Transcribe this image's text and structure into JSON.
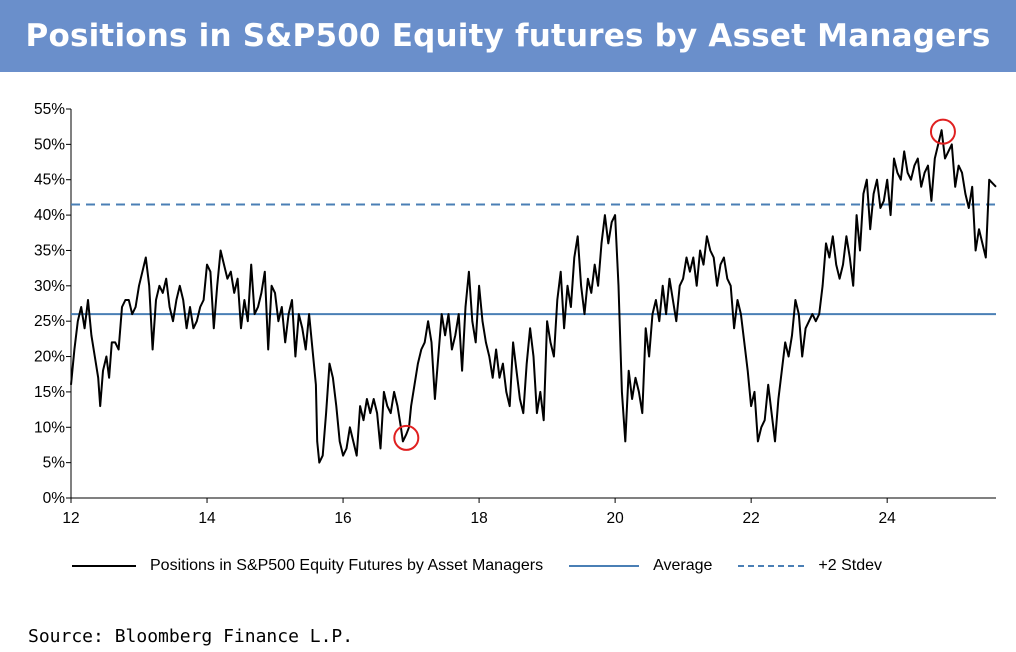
{
  "title": "Positions in S&P500 Equity futures by Asset Managers",
  "source": "Source: Bloomberg Finance L.P.",
  "colors": {
    "title_bg": "#6a8fcb",
    "series": "#000000",
    "reference": "#4a7fb5",
    "highlight": "#e02020"
  },
  "legend": {
    "series": "Positions in S&P500 Equity Futures by Asset Managers",
    "average": "Average",
    "stdev": "+2 Stdev"
  },
  "chart_data": {
    "type": "line",
    "title": "Positions in S&P500 Equity futures by Asset Managers",
    "xlabel": "",
    "ylabel": "",
    "xlim": [
      12,
      25.6
    ],
    "ylim": [
      0,
      55
    ],
    "x_ticks": [
      12,
      14,
      16,
      18,
      20,
      22,
      24
    ],
    "x_tick_labels": [
      "12",
      "14",
      "16",
      "18",
      "20",
      "22",
      "24"
    ],
    "y_ticks": [
      0,
      5,
      10,
      15,
      20,
      25,
      30,
      35,
      40,
      45,
      50,
      55
    ],
    "y_tick_labels": [
      "0%",
      "5%",
      "10%",
      "15%",
      "20%",
      "25%",
      "30%",
      "35%",
      "40%",
      "45%",
      "50%",
      "55%"
    ],
    "reference_lines": [
      {
        "name": "Average",
        "value": 26,
        "style": "solid"
      },
      {
        "name": "+2 Stdev",
        "value": 41.5,
        "style": "dashed"
      }
    ],
    "highlights": [
      {
        "x": 16.93,
        "y": 8.5,
        "label": "low"
      },
      {
        "x": 24.82,
        "y": 51.8,
        "label": "high"
      }
    ],
    "series": [
      {
        "name": "Positions in S&P500 Equity Futures by Asset Managers",
        "points": [
          [
            12.0,
            16
          ],
          [
            12.05,
            21
          ],
          [
            12.1,
            25
          ],
          [
            12.15,
            27
          ],
          [
            12.2,
            24
          ],
          [
            12.25,
            28
          ],
          [
            12.3,
            23
          ],
          [
            12.35,
            20
          ],
          [
            12.4,
            17
          ],
          [
            12.43,
            13
          ],
          [
            12.47,
            18
          ],
          [
            12.52,
            20
          ],
          [
            12.56,
            17
          ],
          [
            12.6,
            22
          ],
          [
            12.65,
            22
          ],
          [
            12.7,
            21
          ],
          [
            12.75,
            27
          ],
          [
            12.8,
            28
          ],
          [
            12.85,
            28
          ],
          [
            12.9,
            26
          ],
          [
            12.95,
            27
          ],
          [
            13.0,
            30
          ],
          [
            13.05,
            32
          ],
          [
            13.1,
            34
          ],
          [
            13.15,
            30
          ],
          [
            13.2,
            21
          ],
          [
            13.25,
            28
          ],
          [
            13.3,
            30
          ],
          [
            13.35,
            29
          ],
          [
            13.4,
            31
          ],
          [
            13.45,
            27
          ],
          [
            13.5,
            25
          ],
          [
            13.55,
            28
          ],
          [
            13.6,
            30
          ],
          [
            13.65,
            28
          ],
          [
            13.7,
            24
          ],
          [
            13.75,
            27
          ],
          [
            13.8,
            24
          ],
          [
            13.85,
            25
          ],
          [
            13.9,
            27
          ],
          [
            13.95,
            28
          ],
          [
            14.0,
            33
          ],
          [
            14.05,
            32
          ],
          [
            14.1,
            24
          ],
          [
            14.15,
            30
          ],
          [
            14.2,
            35
          ],
          [
            14.25,
            33
          ],
          [
            14.3,
            31
          ],
          [
            14.35,
            32
          ],
          [
            14.4,
            29
          ],
          [
            14.45,
            31
          ],
          [
            14.5,
            24
          ],
          [
            14.55,
            28
          ],
          [
            14.6,
            25
          ],
          [
            14.65,
            33
          ],
          [
            14.7,
            26
          ],
          [
            14.75,
            27
          ],
          [
            14.8,
            29
          ],
          [
            14.85,
            32
          ],
          [
            14.9,
            21
          ],
          [
            14.95,
            30
          ],
          [
            15.0,
            29
          ],
          [
            15.05,
            25
          ],
          [
            15.1,
            27
          ],
          [
            15.15,
            22
          ],
          [
            15.2,
            26
          ],
          [
            15.25,
            28
          ],
          [
            15.3,
            20
          ],
          [
            15.35,
            26
          ],
          [
            15.4,
            24
          ],
          [
            15.45,
            21
          ],
          [
            15.5,
            26
          ],
          [
            15.55,
            21
          ],
          [
            15.6,
            16
          ],
          [
            15.62,
            8
          ],
          [
            15.65,
            5
          ],
          [
            15.7,
            6
          ],
          [
            15.75,
            12
          ],
          [
            15.8,
            19
          ],
          [
            15.85,
            17
          ],
          [
            15.9,
            13
          ],
          [
            15.95,
            8
          ],
          [
            16.0,
            6
          ],
          [
            16.05,
            7
          ],
          [
            16.1,
            10
          ],
          [
            16.15,
            8
          ],
          [
            16.2,
            6
          ],
          [
            16.25,
            13
          ],
          [
            16.3,
            11
          ],
          [
            16.35,
            14
          ],
          [
            16.4,
            12
          ],
          [
            16.45,
            14
          ],
          [
            16.5,
            12
          ],
          [
            16.55,
            7
          ],
          [
            16.6,
            15
          ],
          [
            16.65,
            13
          ],
          [
            16.7,
            12
          ],
          [
            16.75,
            15
          ],
          [
            16.8,
            13
          ],
          [
            16.85,
            10
          ],
          [
            16.88,
            8
          ],
          [
            16.93,
            9
          ],
          [
            16.97,
            10
          ],
          [
            17.0,
            13
          ],
          [
            17.05,
            16
          ],
          [
            17.1,
            19
          ],
          [
            17.15,
            21
          ],
          [
            17.2,
            22
          ],
          [
            17.25,
            25
          ],
          [
            17.3,
            22
          ],
          [
            17.35,
            14
          ],
          [
            17.4,
            20
          ],
          [
            17.45,
            26
          ],
          [
            17.5,
            23
          ],
          [
            17.55,
            26
          ],
          [
            17.6,
            21
          ],
          [
            17.65,
            23
          ],
          [
            17.7,
            26
          ],
          [
            17.75,
            18
          ],
          [
            17.8,
            27
          ],
          [
            17.85,
            32
          ],
          [
            17.9,
            25
          ],
          [
            17.95,
            22
          ],
          [
            18.0,
            30
          ],
          [
            18.05,
            25
          ],
          [
            18.1,
            22
          ],
          [
            18.15,
            20
          ],
          [
            18.2,
            17
          ],
          [
            18.25,
            21
          ],
          [
            18.3,
            17
          ],
          [
            18.35,
            19
          ],
          [
            18.4,
            15
          ],
          [
            18.45,
            13
          ],
          [
            18.5,
            22
          ],
          [
            18.55,
            18
          ],
          [
            18.6,
            14
          ],
          [
            18.65,
            12
          ],
          [
            18.7,
            19
          ],
          [
            18.75,
            24
          ],
          [
            18.8,
            20
          ],
          [
            18.85,
            12
          ],
          [
            18.9,
            15
          ],
          [
            18.95,
            11
          ],
          [
            19.0,
            25
          ],
          [
            19.05,
            22
          ],
          [
            19.1,
            20
          ],
          [
            19.15,
            28
          ],
          [
            19.2,
            32
          ],
          [
            19.25,
            24
          ],
          [
            19.3,
            30
          ],
          [
            19.35,
            27
          ],
          [
            19.4,
            34
          ],
          [
            19.45,
            37
          ],
          [
            19.5,
            30
          ],
          [
            19.55,
            26
          ],
          [
            19.6,
            31
          ],
          [
            19.65,
            29
          ],
          [
            19.7,
            33
          ],
          [
            19.75,
            30
          ],
          [
            19.8,
            36
          ],
          [
            19.85,
            40
          ],
          [
            19.9,
            36
          ],
          [
            19.95,
            39
          ],
          [
            20.0,
            40
          ],
          [
            20.05,
            30
          ],
          [
            20.1,
            15
          ],
          [
            20.15,
            8
          ],
          [
            20.2,
            18
          ],
          [
            20.25,
            14
          ],
          [
            20.3,
            17
          ],
          [
            20.35,
            15
          ],
          [
            20.4,
            12
          ],
          [
            20.45,
            24
          ],
          [
            20.5,
            20
          ],
          [
            20.55,
            26
          ],
          [
            20.6,
            28
          ],
          [
            20.65,
            25
          ],
          [
            20.7,
            30
          ],
          [
            20.75,
            26
          ],
          [
            20.8,
            31
          ],
          [
            20.85,
            28
          ],
          [
            20.9,
            25
          ],
          [
            20.95,
            30
          ],
          [
            21.0,
            31
          ],
          [
            21.05,
            34
          ],
          [
            21.1,
            32
          ],
          [
            21.15,
            34
          ],
          [
            21.2,
            30
          ],
          [
            21.25,
            35
          ],
          [
            21.3,
            33
          ],
          [
            21.35,
            37
          ],
          [
            21.4,
            35
          ],
          [
            21.45,
            34
          ],
          [
            21.5,
            30
          ],
          [
            21.55,
            33
          ],
          [
            21.6,
            34
          ],
          [
            21.65,
            31
          ],
          [
            21.7,
            30
          ],
          [
            21.75,
            24
          ],
          [
            21.8,
            28
          ],
          [
            21.85,
            26
          ],
          [
            21.9,
            22
          ],
          [
            21.95,
            18
          ],
          [
            22.0,
            13
          ],
          [
            22.05,
            15
          ],
          [
            22.1,
            8
          ],
          [
            22.15,
            10
          ],
          [
            22.2,
            11
          ],
          [
            22.25,
            16
          ],
          [
            22.3,
            12
          ],
          [
            22.35,
            8
          ],
          [
            22.4,
            14
          ],
          [
            22.45,
            18
          ],
          [
            22.5,
            22
          ],
          [
            22.55,
            20
          ],
          [
            22.6,
            23
          ],
          [
            22.65,
            28
          ],
          [
            22.7,
            26
          ],
          [
            22.75,
            20
          ],
          [
            22.8,
            24
          ],
          [
            22.85,
            25
          ],
          [
            22.9,
            26
          ],
          [
            22.95,
            25
          ],
          [
            23.0,
            26
          ],
          [
            23.05,
            30
          ],
          [
            23.1,
            36
          ],
          [
            23.15,
            34
          ],
          [
            23.2,
            37
          ],
          [
            23.25,
            33
          ],
          [
            23.3,
            31
          ],
          [
            23.35,
            33
          ],
          [
            23.4,
            37
          ],
          [
            23.45,
            34
          ],
          [
            23.5,
            30
          ],
          [
            23.55,
            40
          ],
          [
            23.6,
            35
          ],
          [
            23.65,
            43
          ],
          [
            23.7,
            45
          ],
          [
            23.75,
            38
          ],
          [
            23.8,
            43
          ],
          [
            23.85,
            45
          ],
          [
            23.9,
            41
          ],
          [
            23.95,
            42
          ],
          [
            24.0,
            45
          ],
          [
            24.05,
            40
          ],
          [
            24.1,
            48
          ],
          [
            24.15,
            46
          ],
          [
            24.2,
            45
          ],
          [
            24.25,
            49
          ],
          [
            24.3,
            46
          ],
          [
            24.35,
            45
          ],
          [
            24.4,
            47
          ],
          [
            24.45,
            48
          ],
          [
            24.5,
            44
          ],
          [
            24.55,
            46
          ],
          [
            24.6,
            47
          ],
          [
            24.65,
            42
          ],
          [
            24.7,
            48
          ],
          [
            24.75,
            50
          ],
          [
            24.8,
            52
          ],
          [
            24.85,
            48
          ],
          [
            24.9,
            49
          ],
          [
            24.95,
            50
          ],
          [
            25.0,
            44
          ],
          [
            25.05,
            47
          ],
          [
            25.1,
            46
          ],
          [
            25.15,
            43
          ],
          [
            25.2,
            41
          ],
          [
            25.25,
            44
          ],
          [
            25.3,
            35
          ],
          [
            25.35,
            38
          ],
          [
            25.4,
            36
          ],
          [
            25.45,
            34
          ],
          [
            25.5,
            45
          ],
          [
            25.55,
            44.5
          ],
          [
            25.6,
            44
          ]
        ]
      }
    ]
  }
}
